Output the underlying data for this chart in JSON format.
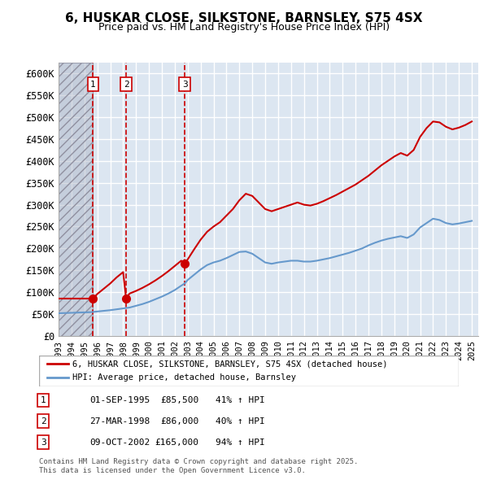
{
  "title": "6, HUSKAR CLOSE, SILKSTONE, BARNSLEY, S75 4SX",
  "subtitle": "Price paid vs. HM Land Registry's House Price Index (HPI)",
  "ylabel": "",
  "ylim": [
    0,
    625000
  ],
  "yticks": [
    0,
    50000,
    100000,
    150000,
    200000,
    250000,
    300000,
    350000,
    400000,
    450000,
    500000,
    550000,
    600000
  ],
  "ytick_labels": [
    "£0",
    "£50K",
    "£100K",
    "£150K",
    "£200K",
    "£250K",
    "£300K",
    "£350K",
    "£400K",
    "£450K",
    "£500K",
    "£550K",
    "£600K"
  ],
  "bg_color": "#dce6f1",
  "plot_bg": "#dce6f1",
  "grid_color": "#ffffff",
  "hatch_color": "#b0b8c8",
  "sale_dates_decimal": [
    1995.67,
    1998.23,
    2002.77
  ],
  "sale_prices": [
    85500,
    86000,
    165000
  ],
  "sale_labels": [
    "1",
    "2",
    "3"
  ],
  "legend_red": "6, HUSKAR CLOSE, SILKSTONE, BARNSLEY, S75 4SX (detached house)",
  "legend_blue": "HPI: Average price, detached house, Barnsley",
  "table_rows": [
    [
      "1",
      "01-SEP-1995",
      "£85,500",
      "41% ↑ HPI"
    ],
    [
      "2",
      "27-MAR-1998",
      "£86,000",
      "40% ↑ HPI"
    ],
    [
      "3",
      "09-OCT-2002",
      "£165,000",
      "94% ↑ HPI"
    ]
  ],
  "footer": "Contains HM Land Registry data © Crown copyright and database right 2025.\nThis data is licensed under the Open Government Licence v3.0.",
  "red_line_color": "#cc0000",
  "blue_line_color": "#6699cc",
  "marker_color": "#cc0000",
  "hpi_x": [
    1993.0,
    1993.5,
    1994.0,
    1994.5,
    1995.0,
    1995.5,
    1995.67,
    1996.0,
    1996.5,
    1997.0,
    1997.5,
    1998.0,
    1998.23,
    1998.5,
    1999.0,
    1999.5,
    2000.0,
    2000.5,
    2001.0,
    2001.5,
    2002.0,
    2002.5,
    2002.77,
    2003.0,
    2003.5,
    2004.0,
    2004.5,
    2005.0,
    2005.5,
    2006.0,
    2006.5,
    2007.0,
    2007.5,
    2008.0,
    2008.5,
    2009.0,
    2009.5,
    2010.0,
    2010.5,
    2011.0,
    2011.5,
    2012.0,
    2012.5,
    2013.0,
    2013.5,
    2014.0,
    2014.5,
    2015.0,
    2015.5,
    2016.0,
    2016.5,
    2017.0,
    2017.5,
    2018.0,
    2018.5,
    2019.0,
    2019.5,
    2020.0,
    2020.5,
    2021.0,
    2021.5,
    2022.0,
    2022.5,
    2023.0,
    2023.5,
    2024.0,
    2024.5,
    2025.0
  ],
  "hpi_y": [
    52000,
    52500,
    53000,
    53500,
    54000,
    54500,
    55000,
    56000,
    57500,
    59000,
    61000,
    63000,
    64000,
    65000,
    69000,
    73000,
    78000,
    84000,
    90000,
    97000,
    105000,
    115000,
    120000,
    128000,
    140000,
    152000,
    162000,
    168000,
    172000,
    178000,
    185000,
    192000,
    193000,
    188000,
    178000,
    168000,
    165000,
    168000,
    170000,
    172000,
    172000,
    170000,
    170000,
    172000,
    175000,
    178000,
    182000,
    186000,
    190000,
    195000,
    200000,
    207000,
    213000,
    218000,
    222000,
    225000,
    228000,
    224000,
    232000,
    248000,
    258000,
    268000,
    265000,
    258000,
    255000,
    257000,
    260000,
    263000
  ],
  "red_x": [
    1993.0,
    1993.5,
    1994.0,
    1994.5,
    1995.0,
    1995.5,
    1995.67,
    1996.0,
    1996.5,
    1997.0,
    1997.5,
    1998.0,
    1998.23,
    1998.5,
    1999.0,
    1999.5,
    2000.0,
    2000.5,
    2001.0,
    2001.5,
    2002.0,
    2002.5,
    2002.77,
    2003.0,
    2003.5,
    2004.0,
    2004.5,
    2005.0,
    2005.5,
    2006.0,
    2006.5,
    2007.0,
    2007.5,
    2008.0,
    2008.5,
    2009.0,
    2009.5,
    2010.0,
    2010.5,
    2011.0,
    2011.5,
    2012.0,
    2012.5,
    2013.0,
    2013.5,
    2014.0,
    2014.5,
    2015.0,
    2015.5,
    2016.0,
    2016.5,
    2017.0,
    2017.5,
    2018.0,
    2018.5,
    2019.0,
    2019.5,
    2020.0,
    2020.5,
    2021.0,
    2021.5,
    2022.0,
    2022.5,
    2023.0,
    2023.5,
    2024.0,
    2024.5,
    2025.0
  ],
  "red_y": [
    85500,
    85500,
    85500,
    85500,
    85500,
    85500,
    85500,
    96000,
    108000,
    120000,
    134000,
    146000,
    86000,
    97000,
    103000,
    110000,
    118000,
    127000,
    137000,
    148000,
    160000,
    172000,
    165000,
    175000,
    198000,
    220000,
    238000,
    250000,
    260000,
    275000,
    290000,
    310000,
    325000,
    320000,
    305000,
    290000,
    285000,
    290000,
    295000,
    300000,
    305000,
    300000,
    298000,
    302000,
    308000,
    315000,
    322000,
    330000,
    338000,
    346000,
    356000,
    366000,
    378000,
    390000,
    400000,
    410000,
    418000,
    412000,
    425000,
    455000,
    475000,
    490000,
    488000,
    478000,
    472000,
    476000,
    482000,
    490000
  ]
}
